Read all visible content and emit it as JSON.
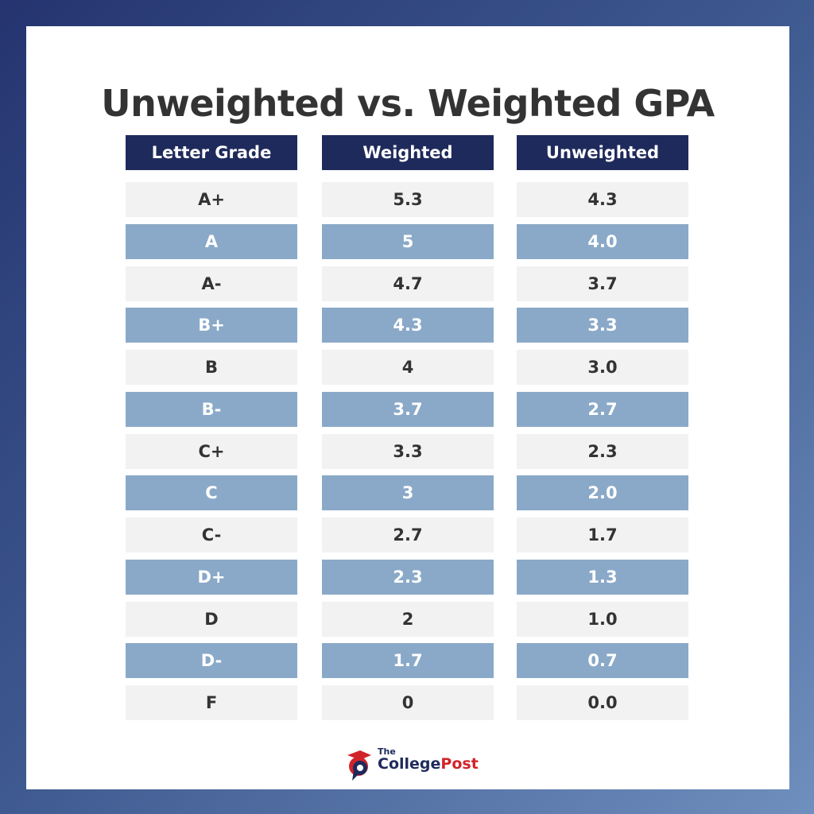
{
  "header": {
    "title": "Unweighted vs. Weighted GPA"
  },
  "table": {
    "columns": [
      "Letter Grade",
      "Weighted",
      "Unweighted"
    ],
    "rows": [
      [
        "A+",
        "5.3",
        "4.3"
      ],
      [
        "A",
        "5",
        "4.0"
      ],
      [
        "A-",
        "4.7",
        "3.7"
      ],
      [
        "B+",
        "4.3",
        "3.3"
      ],
      [
        "B",
        "4",
        "3.0"
      ],
      [
        "B-",
        "3.7",
        "2.7"
      ],
      [
        "C+",
        "3.3",
        "2.3"
      ],
      [
        "C",
        "3",
        "2.0"
      ],
      [
        "C-",
        "2.7",
        "1.7"
      ],
      [
        "D+",
        "2.3",
        "1.3"
      ],
      [
        "D",
        "2",
        "1.0"
      ],
      [
        "D-",
        "1.7",
        "0.7"
      ],
      [
        "F",
        "0",
        "0.0"
      ]
    ]
  },
  "logo": {
    "small": "The",
    "word1": "College",
    "word2": "Post"
  }
}
